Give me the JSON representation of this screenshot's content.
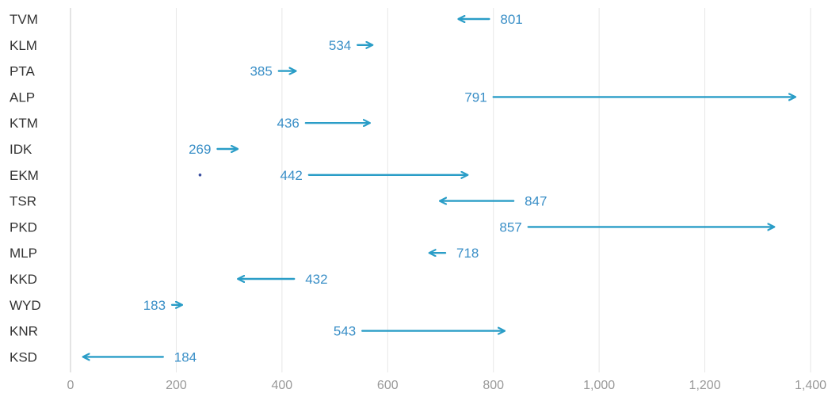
{
  "chart_data": {
    "type": "arrow",
    "title": "",
    "xlabel": "",
    "ylabel": "",
    "xlim": [
      0,
      1400
    ],
    "x_ticks": [
      "0",
      "200",
      "400",
      "600",
      "800",
      "1,000",
      "1,200",
      "1,400"
    ],
    "x_tick_values": [
      0,
      200,
      400,
      600,
      800,
      1000,
      1200,
      1400
    ],
    "grid": true,
    "colors": {
      "arrow": "#2a9dc7",
      "label": "#3a8fc7",
      "dot": "#3b4fa0"
    },
    "categories": [
      "TVM",
      "KLM",
      "PTA",
      "ALP",
      "KTM",
      "IDK",
      "EKM",
      "TSR",
      "PKD",
      "MLP",
      "KKD",
      "WYD",
      "KNR",
      "KSD"
    ],
    "series": [
      {
        "values_start": [
          801,
          534,
          385,
          791,
          436,
          269,
          442,
          847,
          857,
          718,
          432,
          183,
          543,
          184
        ],
        "values_end": [
          735,
          570,
          425,
          1370,
          565,
          315,
          750,
          700,
          1330,
          680,
          318,
          210,
          820,
          25
        ]
      }
    ],
    "markers": [
      {
        "category": "EKM",
        "x": 245
      }
    ]
  }
}
